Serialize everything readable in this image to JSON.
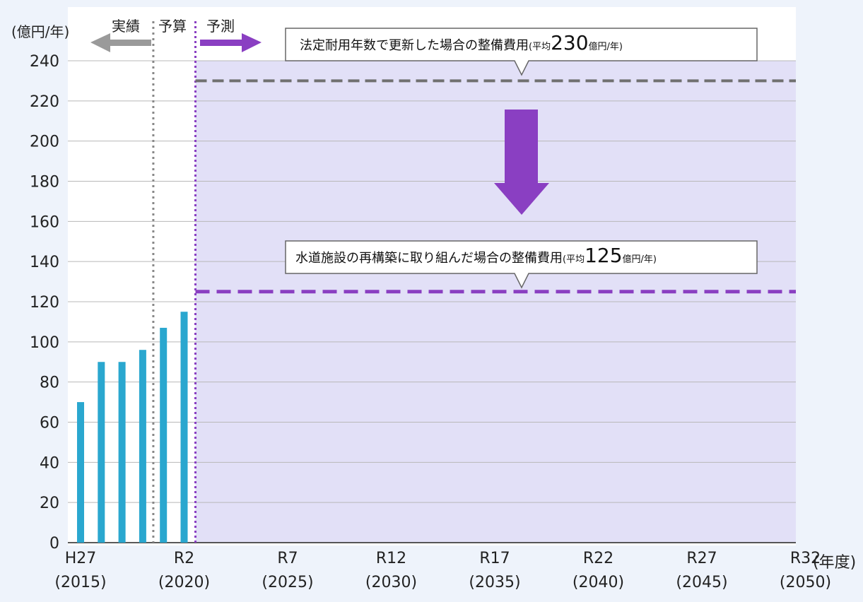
{
  "chart_data": {
    "type": "bar",
    "ylabel": "(億円/年)",
    "xunit": "(年度)",
    "ylim": [
      0,
      240
    ],
    "yticks": [
      "0",
      "20",
      "40",
      "60",
      "80",
      "100",
      "120",
      "140",
      "160",
      "180",
      "200",
      "220",
      "240"
    ],
    "xticks": [
      {
        "top": "H27",
        "bottom": "(2015)",
        "year": 2015
      },
      {
        "top": "R2",
        "bottom": "(2020)",
        "year": 2020
      },
      {
        "top": "R7",
        "bottom": "(2025)",
        "year": 2025
      },
      {
        "top": "R12",
        "bottom": "(2030)",
        "year": 2030
      },
      {
        "top": "R17",
        "bottom": "(2035)",
        "year": 2035
      },
      {
        "top": "R22",
        "bottom": "(2040)",
        "year": 2040
      },
      {
        "top": "R27",
        "bottom": "(2045)",
        "year": 2045
      },
      {
        "top": "R32",
        "bottom": "(2050)",
        "year": 2050
      }
    ],
    "bars": [
      {
        "year": 2015,
        "value": 70
      },
      {
        "year": 2016,
        "value": 90
      },
      {
        "year": 2017,
        "value": 90
      },
      {
        "year": 2018,
        "value": 96
      },
      {
        "year": 2019,
        "value": 107
      },
      {
        "year": 2020,
        "value": 115
      }
    ],
    "references": [
      {
        "value": 230,
        "label": "法定耐用年数で更新した場合の整備費用",
        "avg_prefix": "(平均",
        "avg_value": "230",
        "avg_unit": "億円/年)",
        "color": "#707070"
      },
      {
        "value": 125,
        "label": "水道施設の再構築に取り組んだ場合の整備費用",
        "avg_prefix": "(平均",
        "avg_value": "125",
        "avg_unit": "億円/年)",
        "color": "#8a3fc2"
      }
    ],
    "periods": {
      "actual": "実績",
      "budget": "予算",
      "forecast": "予測"
    },
    "colors": {
      "bar": "#2aa7cf",
      "forecast_bg": "#e2e0f7",
      "arrow": "#8a3fc2",
      "grid": "#b8b8b8"
    }
  }
}
